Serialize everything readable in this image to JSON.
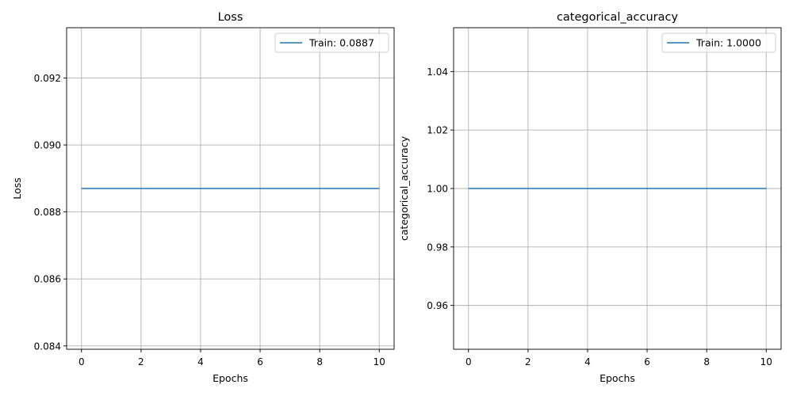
{
  "chart_data": [
    {
      "type": "line",
      "title": "Loss",
      "xlabel": "Epochs",
      "ylabel": "Loss",
      "xlim": [
        -0.5,
        10.5
      ],
      "ylim": [
        0.0839,
        0.0935
      ],
      "xticks": [
        0,
        2,
        4,
        6,
        8,
        10
      ],
      "yticks": [
        0.084,
        0.086,
        0.088,
        0.09,
        0.092
      ],
      "ytick_labels": [
        "0.084",
        "0.086",
        "0.088",
        "0.090",
        "0.092"
      ],
      "xtick_labels": [
        "0",
        "2",
        "4",
        "6",
        "8",
        "10"
      ],
      "grid": true,
      "legend": "top-right",
      "series": [
        {
          "name": "Train: 0.0887",
          "color": "#1f77b4",
          "x": [
            0,
            1,
            2,
            3,
            4,
            5,
            6,
            7,
            8,
            9,
            10
          ],
          "y": [
            0.0887,
            0.0887,
            0.0887,
            0.0887,
            0.0887,
            0.0887,
            0.0887,
            0.0887,
            0.0887,
            0.0887,
            0.0887
          ]
        }
      ]
    },
    {
      "type": "line",
      "title": "categorical_accuracy",
      "xlabel": "Epochs",
      "ylabel": "categorical_accuracy",
      "xlim": [
        -0.5,
        10.5
      ],
      "ylim": [
        0.945,
        1.055
      ],
      "xticks": [
        0,
        2,
        4,
        6,
        8,
        10
      ],
      "yticks": [
        0.96,
        0.98,
        1.0,
        1.02,
        1.04
      ],
      "ytick_labels": [
        "0.96",
        "0.98",
        "1.00",
        "1.02",
        "1.04"
      ],
      "xtick_labels": [
        "0",
        "2",
        "4",
        "6",
        "8",
        "10"
      ],
      "grid": true,
      "legend": "top-right",
      "series": [
        {
          "name": "Train: 1.0000",
          "color": "#1f77b4",
          "x": [
            0,
            1,
            2,
            3,
            4,
            5,
            6,
            7,
            8,
            9,
            10
          ],
          "y": [
            1.0,
            1.0,
            1.0,
            1.0,
            1.0,
            1.0,
            1.0,
            1.0,
            1.0,
            1.0,
            1.0
          ]
        }
      ]
    }
  ]
}
